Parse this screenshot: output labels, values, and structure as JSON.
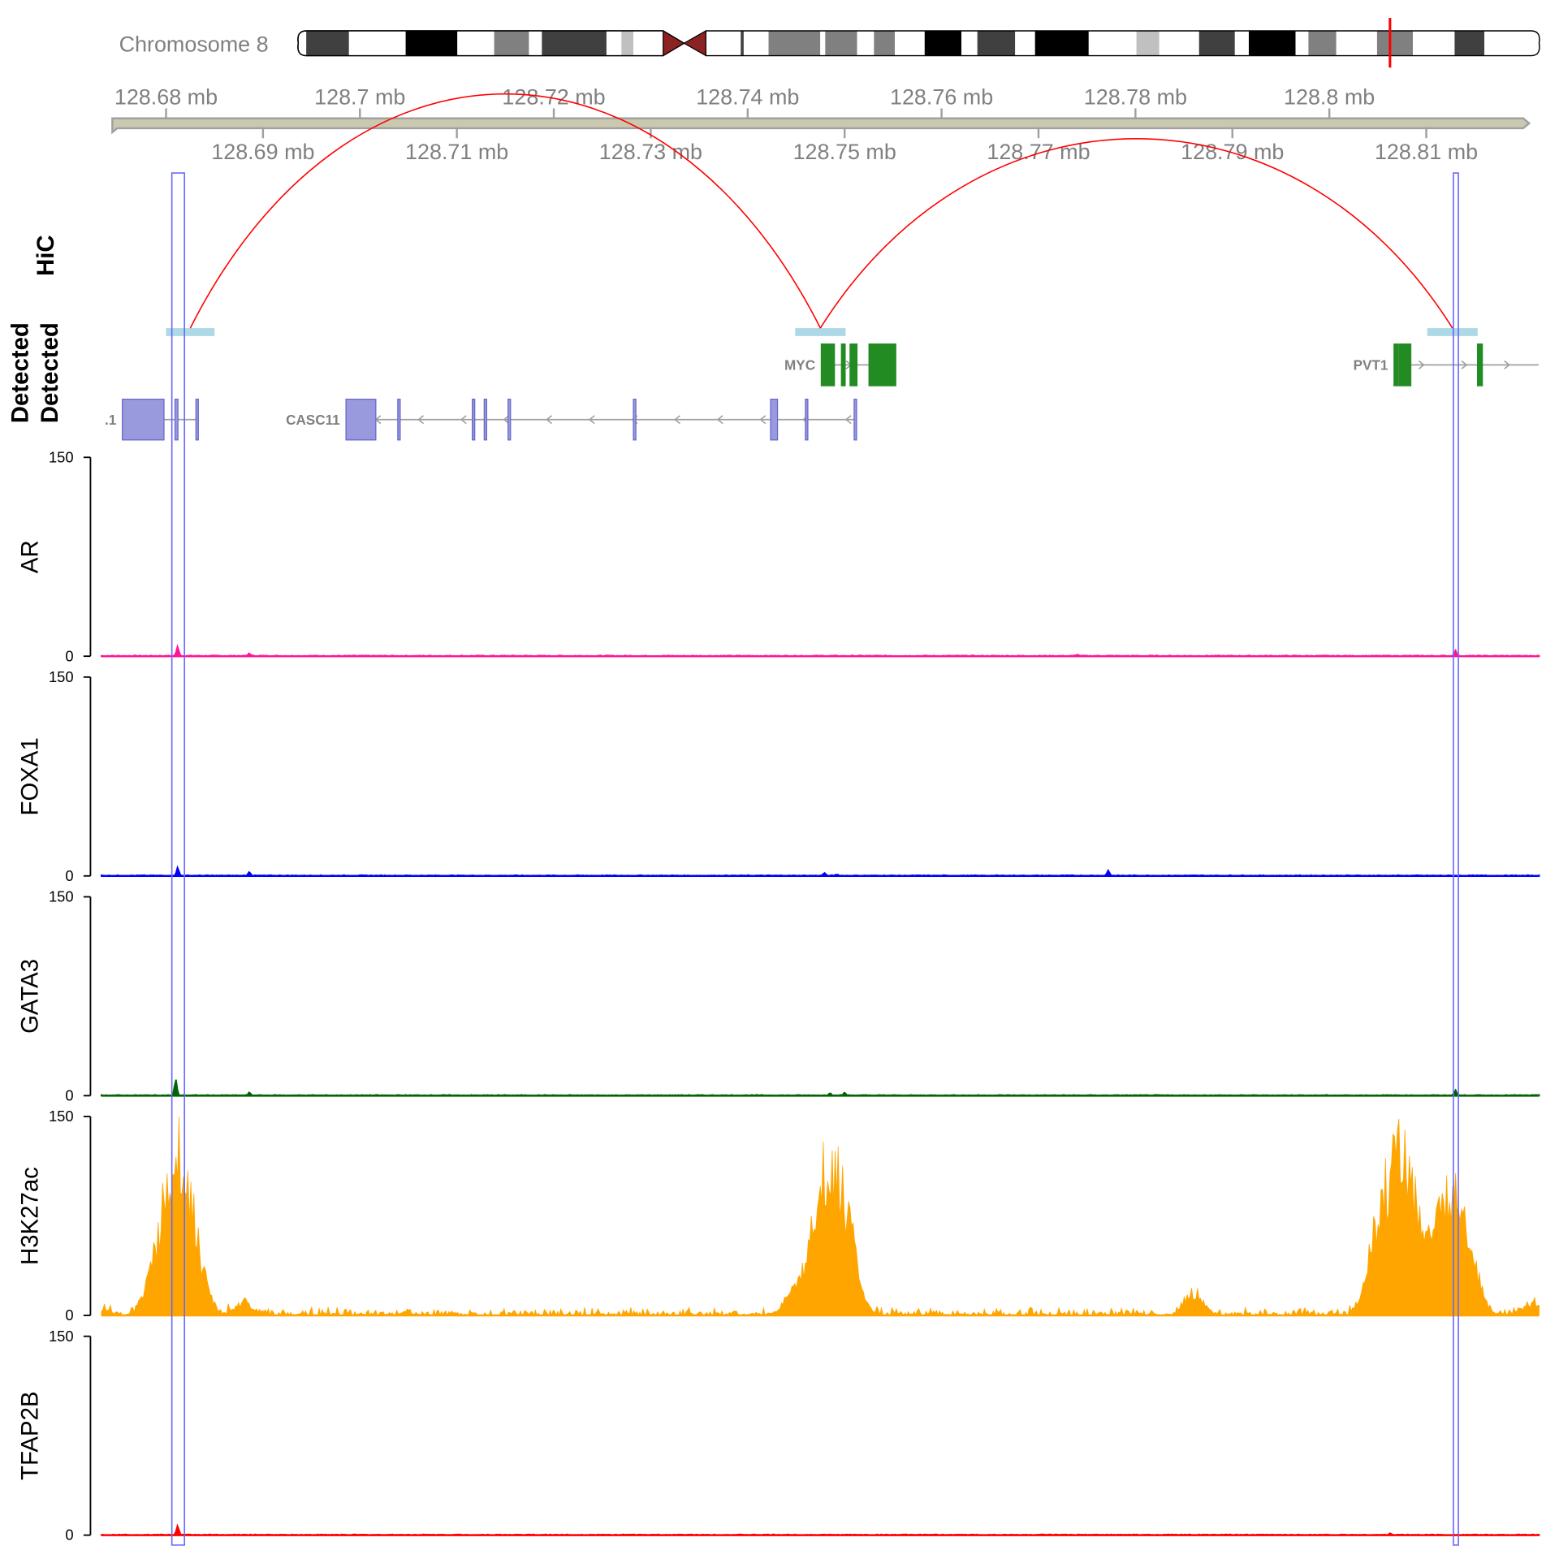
{
  "chromosome": {
    "label": "Chromosome 8",
    "marker_mb": 128.75,
    "marker_color": "#ff0000"
  },
  "axis": {
    "top_ticks": [
      "128.68 mb",
      "128.7 mb",
      "128.72 mb",
      "128.74 mb",
      "128.76 mb",
      "128.78 mb",
      "128.8 mb"
    ],
    "top_values": [
      128.68,
      128.7,
      128.72,
      128.74,
      128.76,
      128.78,
      128.8
    ],
    "bottom_ticks": [
      "128.69 mb",
      "128.71 mb",
      "128.73 mb",
      "128.75 mb",
      "128.77 mb",
      "128.79 mb",
      "128.81 mb"
    ],
    "bottom_values": [
      128.69,
      128.71,
      128.73,
      128.75,
      128.77,
      128.79,
      128.81
    ],
    "range_mb": [
      128.6733,
      128.8216
    ]
  },
  "side_labels": {
    "hic": "HiC",
    "detected_1": "Detected",
    "detected_2": "Detected"
  },
  "highlights": [
    [
      128.6806,
      128.6819
    ],
    [
      128.8128,
      128.8133
    ]
  ],
  "hic": {
    "color": "#ff0000",
    "anchor_color": "#add8e6",
    "anchors": [
      [
        128.68,
        128.685
      ],
      [
        128.7449,
        128.7501
      ],
      [
        128.8101,
        128.8153
      ]
    ],
    "loops": [
      [
        128.6825,
        128.7475
      ],
      [
        128.7475,
        128.8127
      ]
    ]
  },
  "genes": [
    {
      "label": "MYC",
      "strand": "+",
      "row": 0,
      "color": "#228b22",
      "stroke": "#228b22",
      "span": [
        128.74759,
        128.75528
      ],
      "exons": [
        [
          128.74759,
          128.74895
        ],
        [
          128.74967,
          128.75006
        ],
        [
          128.75056,
          128.75128
        ],
        [
          128.75251,
          128.75528
        ]
      ]
    },
    {
      "label": "PVT1",
      "strand": "+",
      "row": 0,
      "color": "#228b22",
      "stroke": "#228b22",
      "span": [
        128.80667,
        128.8216
      ],
      "exons": [
        [
          128.80667,
          128.80708
        ],
        [
          128.80718,
          128.80841
        ],
        [
          128.81528,
          128.81579
        ]
      ]
    },
    {
      "label": "CASC11",
      "strand": "-",
      "row": 1,
      "color": "#9999dd",
      "stroke": "#6666cc",
      "span": [
        128.69856,
        128.75118
      ],
      "exons": [
        [
          128.69856,
          128.70164
        ],
        [
          128.7039,
          128.7041
        ],
        [
          128.71159,
          128.71179
        ],
        [
          128.71282,
          128.71302
        ],
        [
          128.71528,
          128.71548
        ],
        [
          128.72821,
          128.72841
        ],
        [
          128.74236,
          128.74308
        ],
        [
          128.74595,
          128.74615
        ],
        [
          128.75098,
          128.75118
        ]
      ]
    },
    {
      "label": ".1",
      "strand": "-",
      "row": 1,
      "color": "#9999dd",
      "stroke": "#6666cc",
      "span": [
        128.67549,
        128.68328
      ],
      "exons": [
        [
          128.67549,
          128.67979
        ],
        [
          128.68092,
          128.68123
        ],
        [
          128.68308,
          128.68328
        ]
      ]
    }
  ],
  "chart_data": {
    "type": "area",
    "x_unit": "mb",
    "xlim": [
      128.6733,
      128.8216
    ],
    "ylim": [
      0,
      150
    ],
    "y_ticks": [
      "150",
      "0"
    ],
    "series": [
      {
        "name": "AR",
        "color": "#ff1493",
        "peaks": [
          [
            128.6812,
            7
          ],
          [
            128.6886,
            2
          ],
          [
            128.813,
            4
          ],
          [
            128.774,
            1
          ]
        ]
      },
      {
        "name": "FOXA1",
        "color": "#0000ff",
        "peaks": [
          [
            128.6812,
            6
          ],
          [
            128.6886,
            3
          ],
          [
            128.7479,
            2
          ],
          [
            128.7772,
            4
          ],
          [
            128.7492,
            1
          ]
        ]
      },
      {
        "name": "GATA3",
        "color": "#006400",
        "peaks": [
          [
            128.681,
            12
          ],
          [
            128.6886,
            2
          ],
          [
            128.7485,
            2
          ],
          [
            128.75,
            2
          ],
          [
            128.813,
            4
          ]
        ]
      },
      {
        "name": "H3K27ac",
        "color": "#ffa500",
        "peaks": [
          [
            128.6735,
            4
          ],
          [
            128.6785,
            20
          ],
          [
            128.6802,
            85
          ],
          [
            128.6818,
            115
          ],
          [
            128.6835,
            25
          ],
          [
            128.688,
            10
          ],
          [
            128.7445,
            15
          ],
          [
            128.747,
            70
          ],
          [
            128.7485,
            80
          ],
          [
            128.7498,
            65
          ],
          [
            128.751,
            20
          ],
          [
            128.786,
            20
          ],
          [
            128.8045,
            50
          ],
          [
            128.8065,
            109
          ],
          [
            128.808,
            90
          ],
          [
            128.8095,
            40
          ],
          [
            128.8115,
            60
          ],
          [
            128.8132,
            95
          ],
          [
            128.8148,
            30
          ],
          [
            128.821,
            10
          ]
        ]
      },
      {
        "name": "TFAP2B",
        "color": "#ff0000",
        "peaks": [
          [
            128.6812,
            7
          ],
          [
            128.8063,
            1
          ]
        ]
      }
    ]
  }
}
